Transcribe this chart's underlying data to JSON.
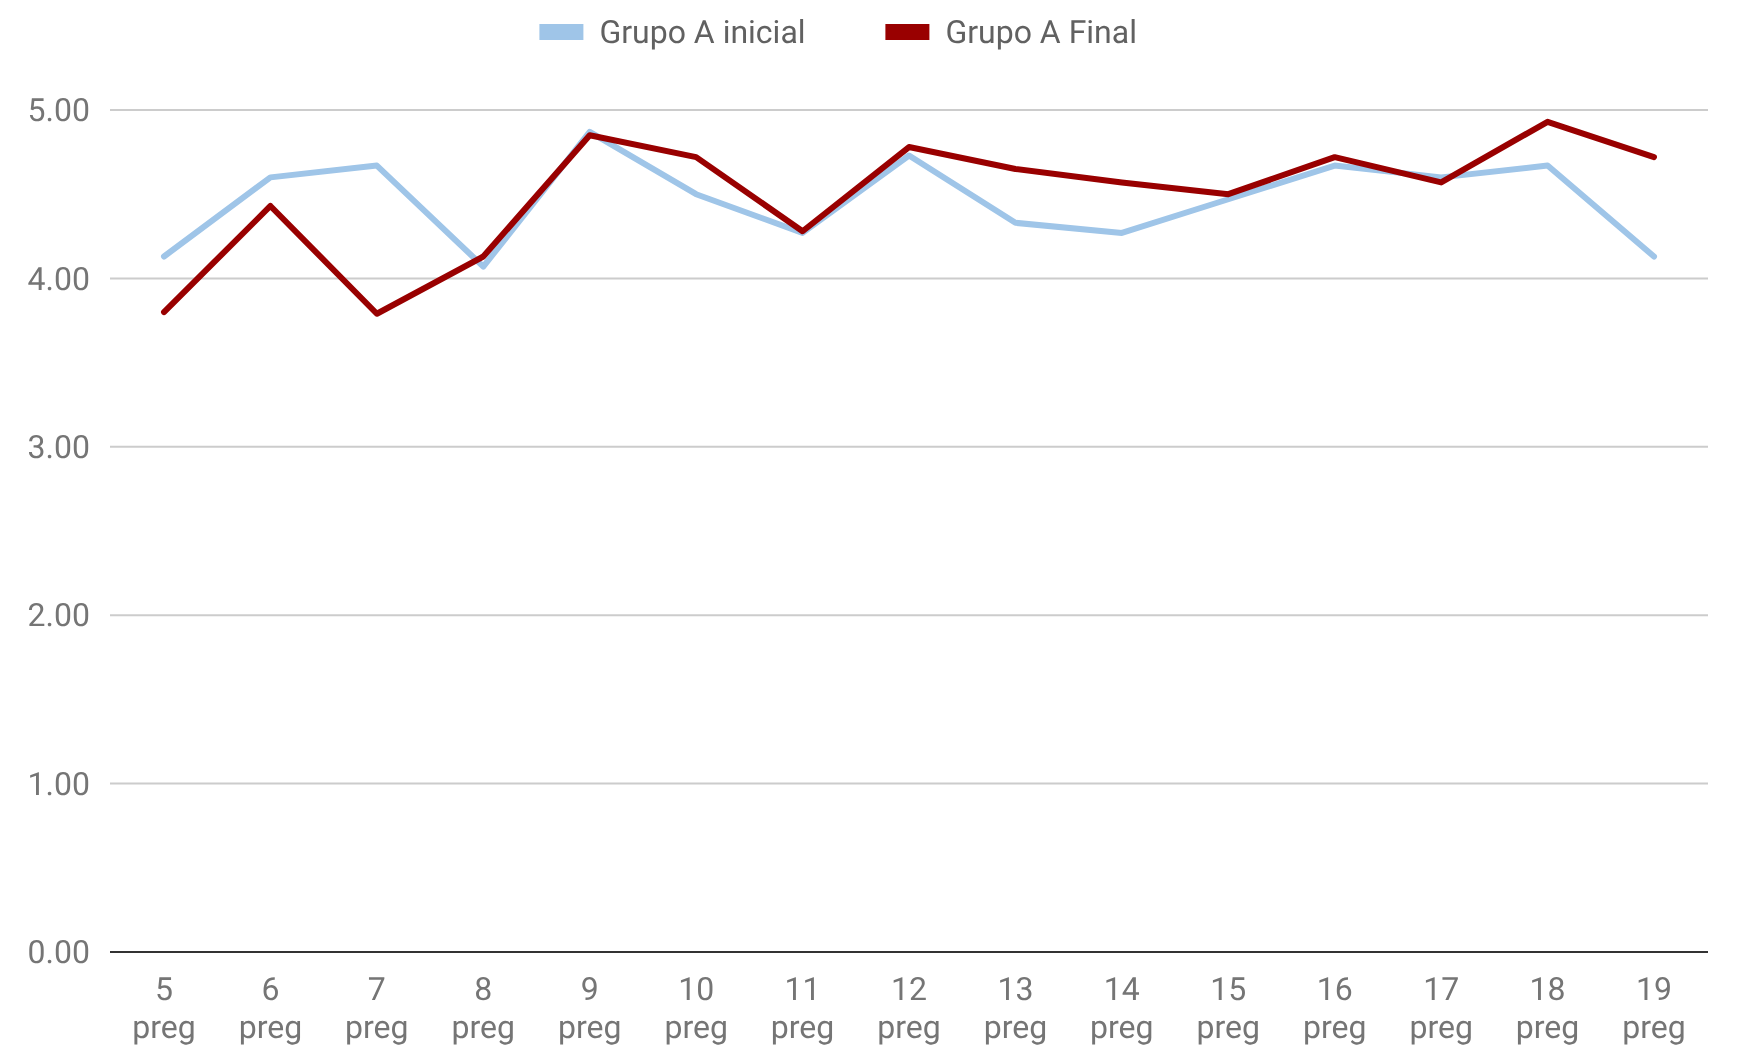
{
  "chart_data": {
    "type": "line",
    "categories": [
      "5 preg",
      "6 preg",
      "7 preg",
      "8 preg",
      "9 preg",
      "10 preg",
      "11 preg",
      "12 preg",
      "13 preg",
      "14 preg",
      "15 preg",
      "16 preg",
      "17 preg",
      "18 preg",
      "19 preg"
    ],
    "series": [
      {
        "name": "Grupo A inicial",
        "color": "#9fc5e8",
        "values": [
          4.13,
          4.6,
          4.67,
          4.07,
          4.87,
          4.5,
          4.27,
          4.73,
          4.33,
          4.27,
          4.47,
          4.67,
          4.6,
          4.67,
          4.13
        ]
      },
      {
        "name": "Grupo A Final",
        "color": "#990000",
        "values": [
          3.8,
          4.43,
          3.79,
          4.13,
          4.85,
          4.72,
          4.28,
          4.78,
          4.65,
          4.57,
          4.5,
          4.72,
          4.57,
          4.93,
          4.72
        ]
      }
    ],
    "ylim": [
      0,
      5
    ],
    "yticks": [
      {
        "value": 0,
        "label": "0.00"
      },
      {
        "value": 1,
        "label": "1.00"
      },
      {
        "value": 2,
        "label": "2.00"
      },
      {
        "value": 3,
        "label": "3.00"
      },
      {
        "value": 4,
        "label": "4.00"
      },
      {
        "value": 5,
        "label": "5.00"
      }
    ],
    "grid": "y",
    "legend": "top",
    "marker": "none",
    "line_style": "solid"
  }
}
